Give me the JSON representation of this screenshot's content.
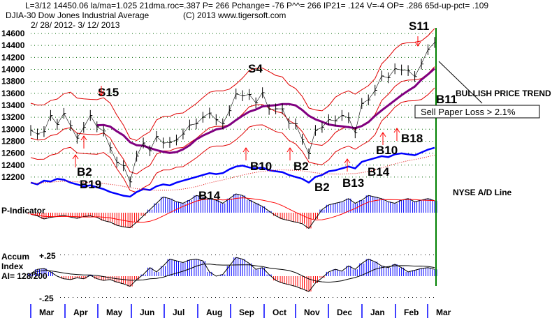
{
  "header": {
    "line1": "L=3/12  14450.06  la/ma=1.025 21dma.roc=.387 P=  266 Pchange= -76 P^^= 266 IP21= .124 V=-4 OP= .286 65d-up-pct= .109",
    "line2": "DJIA-30  Dow Jones Industrial Average",
    "copyright": "(C) 2013 www.tigersoft.com",
    "date_range": "2/ 28/ 2012-  3/ 12/ 2013"
  },
  "colors": {
    "price": "#000000",
    "bands": "#e00000",
    "ma": "#800080",
    "adline": "#0000ff",
    "positive": "#0000ff",
    "negative": "#ff0000",
    "current_line": "#008000"
  },
  "chart_data": {
    "type": "line",
    "title": "DJIA-30 Dow Jones Industrial Average",
    "ylim": [
      12000,
      14600
    ],
    "yticks": [
      "14600",
      "14400",
      "14200",
      "14000",
      "13800",
      "13600",
      "13400",
      "13200",
      "13000",
      "12800",
      "12600",
      "12400",
      "12200"
    ],
    "months": [
      "Mar",
      "Apr",
      "May",
      "Jun",
      "Jul",
      "Aug",
      "Sep",
      "Oct",
      "Nov",
      "Dec",
      "Jan",
      "Feb",
      "Mar"
    ],
    "price": [
      12980,
      12920,
      12960,
      13230,
      13080,
      13264,
      13060,
      12850,
      13030,
      13230,
      13040,
      12970,
      12690,
      12450,
      12390,
      12120,
      12550,
      12770,
      12640,
      12880,
      12770,
      12780,
      12820,
      12920,
      13070,
      13090,
      13200,
      13270,
      13160,
      13090,
      13310,
      13590,
      13560,
      13580,
      13440,
      13610,
      13330,
      13340,
      13340,
      13100,
      13090,
      12830,
      12590,
      12980,
      13030,
      13160,
      13140,
      13230,
      13190,
      12940,
      13430,
      13490,
      13650,
      13890,
      13860,
      14010,
      13990,
      13980,
      13880,
      14090,
      14330,
      14450
    ],
    "ad_line": [
      40,
      38,
      42,
      41,
      44,
      43,
      40,
      38,
      36,
      37,
      35,
      33,
      30,
      28,
      26,
      25,
      30,
      33,
      32,
      36,
      38,
      37,
      40,
      42,
      44,
      46,
      48,
      50,
      49,
      50,
      54,
      57,
      58,
      56,
      55,
      56,
      53,
      52,
      51,
      48,
      46,
      44,
      40,
      46,
      48,
      52,
      53,
      55,
      57,
      55,
      62,
      64,
      66,
      68,
      67,
      70,
      71,
      70,
      69,
      72,
      75,
      77
    ],
    "p_indicator": {
      "label": "P-Indicator",
      "values": [
        -5,
        -10,
        -20,
        -15,
        -12,
        -8,
        -14,
        -18,
        -12,
        -10,
        -15,
        -25,
        -30,
        -40,
        -45,
        -48,
        -30,
        -10,
        10,
        30,
        50,
        45,
        35,
        30,
        40,
        55,
        50,
        45,
        40,
        30,
        45,
        60,
        55,
        40,
        30,
        20,
        5,
        -10,
        -20,
        -25,
        -30,
        -35,
        -50,
        -20,
        10,
        25,
        30,
        35,
        45,
        30,
        40,
        55,
        50,
        45,
        35,
        30,
        40,
        45,
        35,
        40,
        45,
        38
      ]
    },
    "accum_index": {
      "label_line1": "Accum",
      "label_line2": "Index",
      "ai": "AI= 128/200",
      "plus_label": "+.25",
      "minus_label": "-.25",
      "values": [
        0.03,
        0.08,
        0.09,
        0.05,
        0.0,
        -0.03,
        -0.04,
        -0.02,
        -0.03,
        0.01,
        -0.03,
        -0.05,
        -0.04,
        -0.07,
        -0.09,
        -0.12,
        -0.04,
        0.02,
        0.1,
        0.05,
        0.12,
        0.2,
        0.18,
        0.16,
        0.19,
        0.2,
        0.18,
        0.05,
        0.0,
        0.02,
        0.12,
        0.22,
        0.2,
        0.15,
        0.08,
        0.1,
        0.02,
        -0.05,
        -0.08,
        -0.1,
        -0.12,
        -0.15,
        -0.18,
        -0.08,
        -0.02,
        0.05,
        0.08,
        0.06,
        0.12,
        0.08,
        0.15,
        0.2,
        0.17,
        0.12,
        0.1,
        0.14,
        0.1,
        0.05,
        0.07,
        0.09,
        0.1,
        0.08
      ]
    },
    "annotations": [
      "S15",
      "S4",
      "S11",
      "B2",
      "B19",
      "B14",
      "B10",
      "B2",
      "B2",
      "B13",
      "B14",
      "B10",
      "B18",
      "B11"
    ],
    "right_labels": {
      "trend": "BULLISH PRICE TREND",
      "sell_box": "Sell Paper Loss > 2.1%",
      "ad_label": "NYSE A/D Line"
    }
  }
}
